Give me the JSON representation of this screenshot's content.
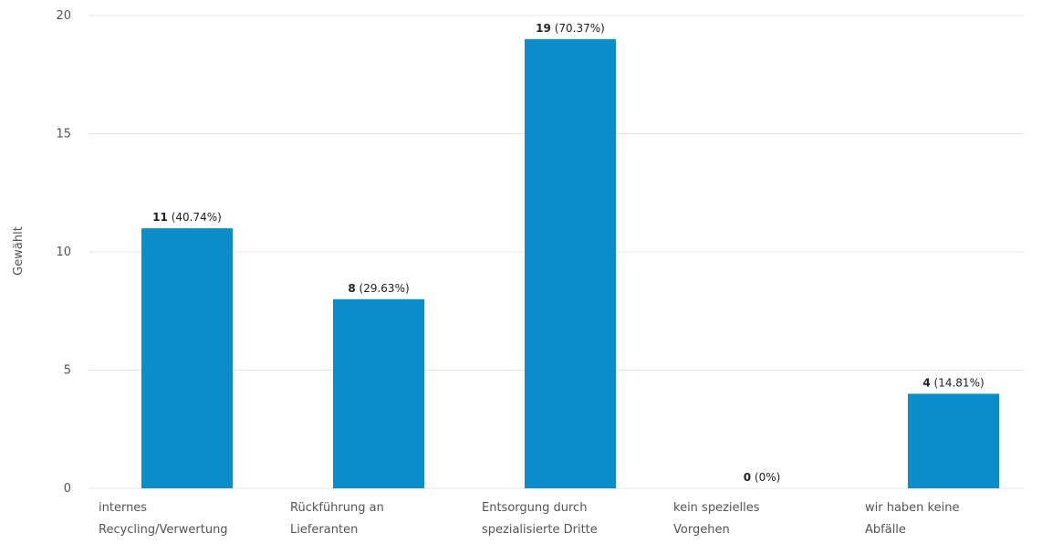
{
  "chart_data": {
    "type": "bar",
    "ylabel": "Gewählt",
    "xlabel": "",
    "ylim": [
      0,
      20
    ],
    "yticks": [
      0,
      5,
      10,
      15,
      20
    ],
    "grid": true,
    "legend": "none",
    "color": "#0a8dc8",
    "categories": [
      [
        "internes",
        "Recycling/Verwertung"
      ],
      [
        "Rückführung an",
        "Lieferanten"
      ],
      [
        "Entsorgung durch",
        "spezialisierte Dritte"
      ],
      [
        "kein spezielles",
        "Vorgehen"
      ],
      [
        "wir haben keine",
        "Abfälle"
      ]
    ],
    "values": [
      11,
      8,
      19,
      0,
      4
    ],
    "percent_labels": [
      "(40.74%)",
      "(29.63%)",
      "(70.37%)",
      "(0%)",
      "(14.81%)"
    ]
  }
}
